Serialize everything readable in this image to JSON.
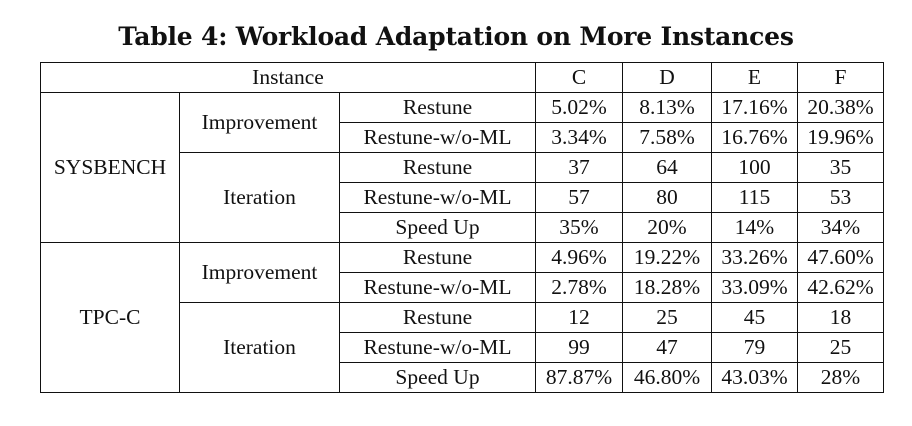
{
  "caption": "Table 4: Workload Adaptation on More Instances",
  "header": {
    "instance": "Instance",
    "columns": [
      "C",
      "D",
      "E",
      "F"
    ]
  },
  "sysbench": {
    "label": "SYSBENCH",
    "improvement": {
      "label": "Improvement",
      "rows": [
        {
          "method": "Restune",
          "values": [
            "5.02%",
            "8.13%",
            "17.16%",
            "20.38%"
          ]
        },
        {
          "method": "Restune-w/o-ML",
          "values": [
            "3.34%",
            "7.58%",
            "16.76%",
            "19.96%"
          ]
        }
      ]
    },
    "iteration": {
      "label": "Iteration",
      "rows": [
        {
          "method": "Restune",
          "values": [
            "37",
            "64",
            "100",
            "35"
          ]
        },
        {
          "method": "Restune-w/o-ML",
          "values": [
            "57",
            "80",
            "115",
            "53"
          ]
        },
        {
          "method": "Speed Up",
          "values": [
            "35%",
            "20%",
            "14%",
            "34%"
          ]
        }
      ]
    }
  },
  "tpcc": {
    "label": "TPC-C",
    "improvement": {
      "label": "Improvement",
      "rows": [
        {
          "method": "Restune",
          "values": [
            "4.96%",
            "19.22%",
            "33.26%",
            "47.60%"
          ]
        },
        {
          "method": "Restune-w/o-ML",
          "values": [
            "2.78%",
            "18.28%",
            "33.09%",
            "42.62%"
          ]
        }
      ]
    },
    "iteration": {
      "label": "Iteration",
      "rows": [
        {
          "method": "Restune",
          "values": [
            "12",
            "25",
            "45",
            "18"
          ]
        },
        {
          "method": "Restune-w/o-ML",
          "values": [
            "99",
            "47",
            "79",
            "25"
          ]
        },
        {
          "method": "Speed Up",
          "values": [
            "87.87%",
            "46.80%",
            "43.03%",
            "28%"
          ]
        }
      ]
    }
  }
}
